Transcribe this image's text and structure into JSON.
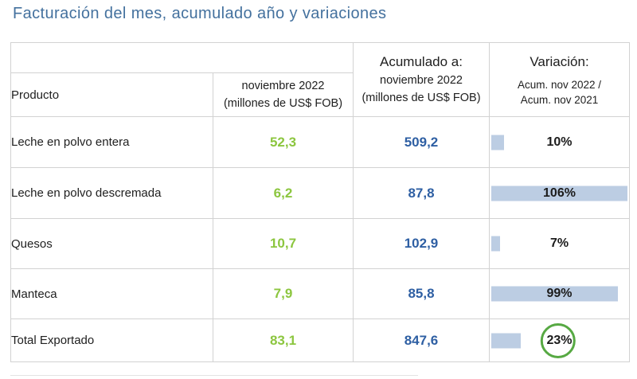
{
  "title": "Facturación del mes, acumulado año y variaciones",
  "table": {
    "header": {
      "product_label": "Producto",
      "month_line1": "noviembre 2022",
      "month_line2": "(millones de US$ FOB)",
      "accum_title": "Acumulado a:",
      "accum_line1": "noviembre 2022",
      "accum_line2": "(millones de US$ FOB)",
      "variation_title": "Variación:",
      "variation_line1": "Acum. nov 2022 /",
      "variation_line2": "Acum. nov 2021"
    },
    "rows": [
      {
        "product": "Leche en polvo entera",
        "month": "52,3",
        "accum": "509,2",
        "variation": "10%",
        "variation_pct": 10,
        "circled": false
      },
      {
        "product": "Leche en polvo descremada",
        "month": "6,2",
        "accum": "87,8",
        "variation": "106%",
        "variation_pct": 106,
        "circled": false
      },
      {
        "product": "Quesos",
        "month": "10,7",
        "accum": "102,9",
        "variation": "7%",
        "variation_pct": 7,
        "circled": false
      },
      {
        "product": "Manteca",
        "month": "7,9",
        "accum": "85,8",
        "variation": "99%",
        "variation_pct": 99,
        "circled": false
      },
      {
        "product": "Total Exportado",
        "month": "83,1",
        "accum": "847,6",
        "variation": "23%",
        "variation_pct": 23,
        "circled": true
      }
    ]
  },
  "colors": {
    "title_blue": "#44719E",
    "month_green": "#8CC63F",
    "accum_blue": "#2E5FA3",
    "bar_fill": "#BCCDE3",
    "circle_green": "#57A943",
    "grid_border": "#D2D2D2"
  },
  "chart_data": {
    "type": "table",
    "title": "Facturación del mes, acumulado año y variaciones",
    "columns": [
      "Producto",
      "noviembre 2022 (millones de US$ FOB)",
      "Acumulado a: noviembre 2022 (millones de US$ FOB)",
      "Variación: Acum. nov 2022 / Acum. nov 2021"
    ],
    "rows": [
      [
        "Leche en polvo entera",
        52.3,
        509.2,
        "10%"
      ],
      [
        "Leche en polvo descremada",
        6.2,
        87.8,
        "106%"
      ],
      [
        "Quesos",
        10.7,
        102.9,
        "7%"
      ],
      [
        "Manteca",
        7.9,
        85.8,
        "99%"
      ],
      [
        "Total Exportado",
        83.1,
        847.6,
        "23%"
      ]
    ],
    "annotations": [
      "Variación column shows horizontal data bars proportional to the percentage (106% = full cell width)",
      "The 23% value in the Total Exportado row is circled in green"
    ],
    "legend_position": "none",
    "grid": true
  }
}
